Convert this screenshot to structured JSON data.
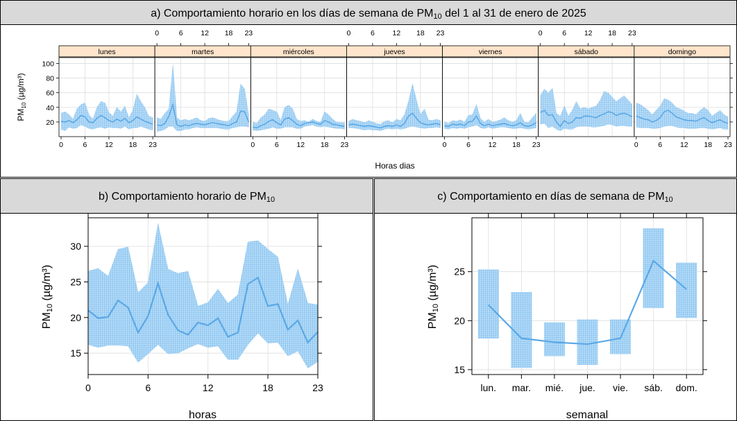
{
  "panels": {
    "a": {
      "title": "a) Comportamiento horario en los días de semana de PM",
      "title_sub": "10",
      "title_rest": " del 1 al 31 de enero de 2025",
      "xlabel": "Horas dias"
    },
    "b": {
      "title": "b) Comportamiento horario de PM",
      "title_sub": "10",
      "xlabel": "horas"
    },
    "c": {
      "title": "c) Comportamiento en días de semana de PM",
      "title_sub": "10",
      "xlabel": "semanal"
    }
  },
  "ylabel": {
    "main": "PM",
    "sub": "10",
    "rest": " (µg/m³)"
  },
  "colors": {
    "line": "#5aa8e6",
    "band": "#b7dcf7",
    "grid": "#dddddd",
    "strip": "#ffe5cc",
    "header": "#d9d9d9"
  },
  "chart_data": [
    {
      "id": "a",
      "type": "area",
      "title": "a) Comportamiento horario en los días de semana de PM10 del 1 al 31 de enero de 2025",
      "xlabel": "Horas dias",
      "ylabel": "PM10 (µg/m³)",
      "ylim": [
        0,
        108
      ],
      "yticks": [
        20,
        40,
        60,
        80,
        100
      ],
      "xticks_labels": [
        "0",
        "6",
        "12",
        "18",
        "23"
      ],
      "days": [
        "lunes",
        "martes",
        "miércoles",
        "jueves",
        "viernes",
        "sábado",
        "domingo"
      ],
      "grid": true,
      "series": [
        {
          "name": "lunes",
          "mean": [
            21,
            20,
            22,
            19,
            23,
            29,
            27,
            20,
            19,
            25,
            29,
            26,
            22,
            20,
            24,
            21,
            25,
            19,
            22,
            27,
            24,
            21,
            19,
            17
          ],
          "upper": [
            32,
            34,
            30,
            24,
            38,
            44,
            46,
            30,
            24,
            40,
            48,
            46,
            33,
            28,
            40,
            34,
            42,
            26,
            36,
            58,
            48,
            40,
            28,
            26
          ],
          "lower": [
            10,
            8,
            13,
            11,
            12,
            16,
            14,
            11,
            10,
            12,
            13,
            11,
            13,
            12,
            12,
            11,
            14,
            10,
            12,
            12,
            14,
            12,
            10,
            9
          ]
        },
        {
          "name": "martes",
          "mean": [
            16,
            15,
            18,
            28,
            44,
            16,
            14,
            16,
            15,
            17,
            18,
            17,
            16,
            18,
            19,
            18,
            17,
            16,
            15,
            18,
            20,
            35,
            34,
            20
          ],
          "upper": [
            26,
            24,
            32,
            38,
            98,
            26,
            22,
            24,
            22,
            24,
            26,
            22,
            21,
            25,
            26,
            24,
            22,
            21,
            21,
            28,
            34,
            72,
            65,
            30
          ],
          "lower": [
            7,
            8,
            10,
            14,
            14,
            8,
            8,
            10,
            10,
            12,
            13,
            12,
            12,
            12,
            12,
            12,
            11,
            10,
            10,
            12,
            13,
            14,
            14,
            13
          ]
        },
        {
          "name": "miércoles",
          "mean": [
            13,
            12,
            15,
            17,
            21,
            23,
            19,
            16,
            24,
            26,
            22,
            17,
            15,
            18,
            19,
            20,
            18,
            17,
            22,
            20,
            17,
            16,
            15,
            14
          ],
          "upper": [
            20,
            18,
            26,
            30,
            38,
            36,
            34,
            22,
            40,
            43,
            38,
            24,
            21,
            22,
            20,
            24,
            21,
            20,
            34,
            30,
            24,
            20,
            19,
            19
          ],
          "lower": [
            9,
            8,
            9,
            10,
            11,
            13,
            11,
            11,
            13,
            13,
            13,
            11,
            11,
            14,
            15,
            16,
            14,
            13,
            14,
            13,
            12,
            11,
            11,
            10
          ]
        },
        {
          "name": "jueves",
          "mean": [
            16,
            17,
            16,
            15,
            14,
            15,
            14,
            13,
            12,
            14,
            15,
            14,
            16,
            14,
            18,
            28,
            32,
            25,
            19,
            17,
            16,
            17,
            18,
            16
          ],
          "upper": [
            21,
            24,
            22,
            21,
            19,
            22,
            20,
            18,
            17,
            21,
            22,
            19,
            24,
            22,
            30,
            48,
            72,
            50,
            30,
            38,
            23,
            22,
            24,
            22
          ],
          "lower": [
            12,
            12,
            11,
            10,
            9,
            10,
            9,
            9,
            8,
            10,
            11,
            10,
            11,
            10,
            11,
            13,
            14,
            13,
            12,
            11,
            12,
            12,
            13,
            12
          ]
        },
        {
          "name": "viernes",
          "mean": [
            15,
            14,
            17,
            16,
            17,
            15,
            20,
            21,
            28,
            18,
            15,
            17,
            15,
            16,
            17,
            18,
            16,
            15,
            16,
            19,
            15,
            14,
            16,
            19
          ],
          "upper": [
            20,
            18,
            22,
            21,
            23,
            20,
            29,
            30,
            44,
            25,
            20,
            24,
            20,
            21,
            23,
            26,
            22,
            20,
            22,
            32,
            20,
            19,
            26,
            32
          ],
          "lower": [
            11,
            10,
            12,
            11,
            12,
            11,
            13,
            14,
            16,
            12,
            11,
            13,
            11,
            12,
            13,
            13,
            12,
            11,
            11,
            12,
            11,
            10,
            11,
            12
          ]
        },
        {
          "name": "sábado",
          "mean": [
            33,
            36,
            29,
            30,
            20,
            14,
            22,
            18,
            20,
            26,
            25,
            28,
            28,
            27,
            26,
            29,
            31,
            34,
            33,
            29,
            31,
            32,
            30,
            27
          ],
          "upper": [
            56,
            65,
            60,
            66,
            32,
            28,
            42,
            28,
            36,
            48,
            38,
            40,
            38,
            40,
            42,
            50,
            62,
            60,
            54,
            48,
            52,
            56,
            50,
            44
          ],
          "lower": [
            17,
            18,
            12,
            14,
            10,
            8,
            11,
            10,
            10,
            13,
            14,
            14,
            14,
            13,
            13,
            14,
            15,
            17,
            16,
            14,
            15,
            15,
            14,
            14
          ]
        },
        {
          "name": "domingo",
          "mean": [
            28,
            26,
            24,
            23,
            20,
            22,
            26,
            34,
            36,
            32,
            27,
            25,
            23,
            22,
            22,
            21,
            24,
            26,
            22,
            19,
            21,
            23,
            20,
            18
          ],
          "upper": [
            46,
            44,
            40,
            36,
            30,
            36,
            42,
            52,
            50,
            46,
            40,
            38,
            35,
            32,
            32,
            30,
            36,
            40,
            36,
            28,
            32,
            36,
            30,
            27
          ],
          "lower": [
            13,
            12,
            12,
            12,
            11,
            11,
            12,
            14,
            15,
            15,
            13,
            12,
            12,
            11,
            11,
            11,
            12,
            12,
            11,
            10,
            11,
            12,
            10,
            10
          ]
        }
      ]
    },
    {
      "id": "b",
      "type": "area",
      "title": "b) Comportamiento horario de PM10",
      "xlabel": "horas",
      "ylabel": "PM10 (µg/m³)",
      "xlim": [
        0,
        23
      ],
      "ylim": [
        12,
        34
      ],
      "xticks": [
        0,
        6,
        12,
        18,
        23
      ],
      "yticks": [
        15,
        20,
        25,
        30
      ],
      "x": [
        0,
        1,
        2,
        3,
        4,
        5,
        6,
        7,
        8,
        9,
        10,
        11,
        12,
        13,
        14,
        15,
        16,
        17,
        18,
        19,
        20,
        21,
        22,
        23
      ],
      "series": [
        {
          "name": "mean",
          "values": [
            21.0,
            19.9,
            20.1,
            22.4,
            21.4,
            17.9,
            20.2,
            24.8,
            20.4,
            18.2,
            17.6,
            19.3,
            18.9,
            19.9,
            17.3,
            17.9,
            24.7,
            25.6,
            21.6,
            21.9,
            18.3,
            19.6,
            16.5,
            18.0
          ]
        },
        {
          "name": "upper",
          "values": [
            26.5,
            26.9,
            25.8,
            29.6,
            29.9,
            23.5,
            24.9,
            33.2,
            26.8,
            26.2,
            26.5,
            21.6,
            22.1,
            24.0,
            22.0,
            23.2,
            30.6,
            30.8,
            29.6,
            28.5,
            21.8,
            26.8,
            22.0,
            21.8
          ]
        },
        {
          "name": "lower",
          "values": [
            16.2,
            15.8,
            16.1,
            16.1,
            16.0,
            13.7,
            14.9,
            16.2,
            14.9,
            15.0,
            15.7,
            16.3,
            15.8,
            16.0,
            14.1,
            14.1,
            16.2,
            17.8,
            16.4,
            16.5,
            14.6,
            15.3,
            12.9,
            13.8
          ]
        }
      ]
    },
    {
      "id": "c",
      "type": "line",
      "title": "c) Comportamiento en días de semana de PM10",
      "xlabel": "semanal",
      "ylabel": "PM10 (µg/m³)",
      "ylim": [
        14.5,
        30.5
      ],
      "yticks": [
        15,
        20,
        25
      ],
      "categories": [
        "lun.",
        "mar.",
        "mié.",
        "jue.",
        "vie.",
        "sáb.",
        "dom."
      ],
      "series": [
        {
          "name": "mean",
          "values": [
            21.6,
            18.2,
            17.8,
            17.6,
            18.2,
            26.1,
            23.2
          ]
        },
        {
          "name": "upper",
          "values": [
            25.2,
            22.9,
            19.8,
            20.1,
            20.1,
            29.4,
            25.9
          ]
        },
        {
          "name": "lower",
          "values": [
            18.2,
            15.2,
            16.4,
            15.5,
            16.6,
            21.3,
            20.3
          ]
        }
      ]
    }
  ]
}
